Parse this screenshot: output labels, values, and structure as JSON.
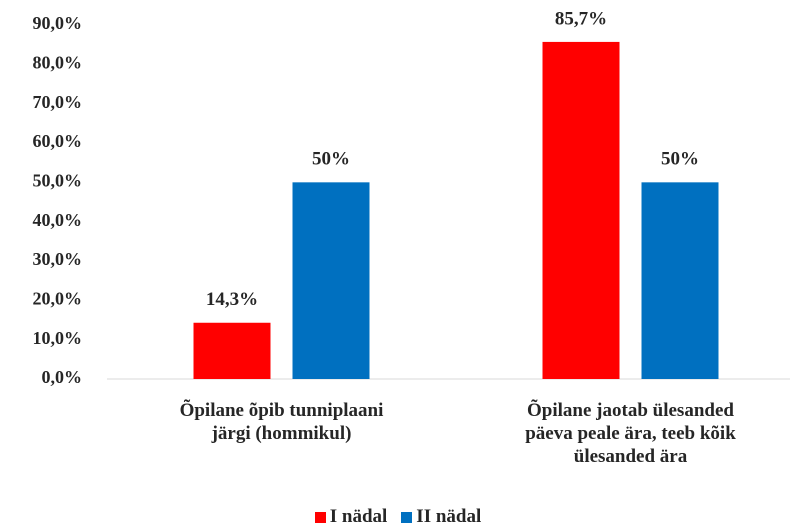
{
  "chart_data": {
    "type": "bar",
    "categories": [
      "Õpilane õpib tunniplaani\njärgi (hommikul)",
      "Õpilane jaotab ülesanded\npäeva peale ära, teeb kõik\nülesanded ära"
    ],
    "series": [
      {
        "name": "I nädal",
        "color": "#ff0000",
        "values": [
          14.3,
          85.7
        ],
        "value_labels": [
          "14,3%",
          "85,7%"
        ]
      },
      {
        "name": "II nädal",
        "color": "#0070c0",
        "values": [
          50,
          50
        ],
        "value_labels": [
          "50%",
          "50%"
        ]
      }
    ],
    "ylim": [
      0,
      90
    ],
    "yticks": [
      {
        "value": 0,
        "label": "0,0%"
      },
      {
        "value": 10,
        "label": "10,0%"
      },
      {
        "value": 20,
        "label": "20,0%"
      },
      {
        "value": 30,
        "label": "30,0%"
      },
      {
        "value": 40,
        "label": "40,0%"
      },
      {
        "value": 50,
        "label": "50,0%"
      },
      {
        "value": 60,
        "label": "60,0%"
      },
      {
        "value": 70,
        "label": "70,0%"
      },
      {
        "value": 80,
        "label": "80,0%"
      },
      {
        "value": 90,
        "label": "90,0%"
      }
    ],
    "legend": "bottom",
    "grid": false
  }
}
